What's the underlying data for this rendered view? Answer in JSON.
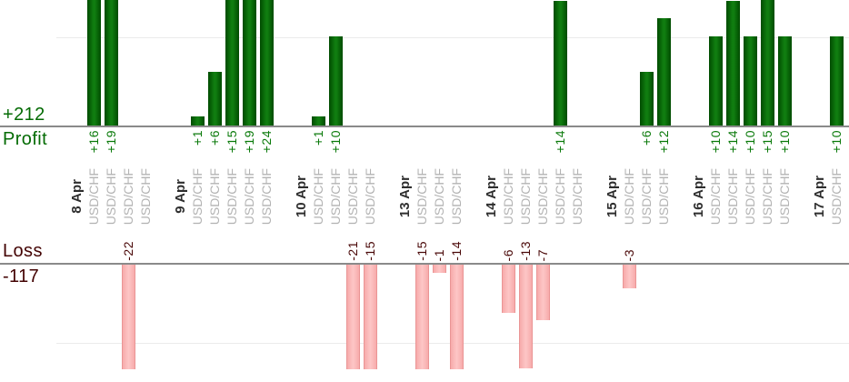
{
  "summary": {
    "profit_total": "+212",
    "profit_label": "Profit",
    "loss_label": "Loss",
    "loss_total": "-117"
  },
  "colors": {
    "profit_bar_edge": "#004b00",
    "profit_bar_center": "#107d10",
    "profit_text": "#0a7a0a",
    "profit_summary_text": "#046b04",
    "loss_bar_fill": "#fdc6c6",
    "loss_bar_edge": "#ea9595",
    "loss_text": "#4a0808",
    "loss_summary_text": "#430303",
    "date_text": "#2e2e2e",
    "instrument_text": "#b3b3b3",
    "axis_line": "#8a8a8a",
    "gridline": "#ebebeb"
  },
  "chart_data": {
    "type": "bar",
    "title": "",
    "xlabel": "",
    "ylabel": "",
    "legend": [
      "Profit",
      "Loss"
    ],
    "gridlines_at_values": [
      10,
      -10
    ],
    "profit_total": 212,
    "loss_total": -117,
    "groups": [
      {
        "date": "8 Apr",
        "trades": [
          {
            "instrument": "USD/CHF",
            "value": 16,
            "label": "+16"
          },
          {
            "instrument": "USD/CHF",
            "value": 19,
            "label": "+19"
          },
          {
            "instrument": "USD/CHF",
            "value": -22,
            "label": "-22"
          },
          {
            "instrument": "USD/CHF",
            "value": 0,
            "label": ""
          }
        ]
      },
      {
        "date": "9 Apr",
        "trades": [
          {
            "instrument": "USD/CHF",
            "value": 1,
            "label": "+1"
          },
          {
            "instrument": "USD/CHF",
            "value": 6,
            "label": "+6"
          },
          {
            "instrument": "USD/CHF",
            "value": 15,
            "label": "+15"
          },
          {
            "instrument": "USD/CHF",
            "value": 19,
            "label": "+19"
          },
          {
            "instrument": "USD/CHF",
            "value": 24,
            "label": "+24"
          }
        ]
      },
      {
        "date": "10 Apr",
        "trades": [
          {
            "instrument": "USD/CHF",
            "value": 1,
            "label": "+1"
          },
          {
            "instrument": "USD/CHF",
            "value": 10,
            "label": "+10"
          },
          {
            "instrument": "USD/CHF",
            "value": -21,
            "label": "-21"
          },
          {
            "instrument": "USD/CHF",
            "value": -15,
            "label": "-15"
          }
        ]
      },
      {
        "date": "13 Apr",
        "trades": [
          {
            "instrument": "USD/CHF",
            "value": -15,
            "label": "-15"
          },
          {
            "instrument": "USD/CHF",
            "value": -1,
            "label": "-1"
          },
          {
            "instrument": "USD/CHF",
            "value": -14,
            "label": "-14"
          }
        ]
      },
      {
        "date": "14 Apr",
        "trades": [
          {
            "instrument": "USD/CHF",
            "value": -6,
            "label": "-6"
          },
          {
            "instrument": "USD/CHF",
            "value": -13,
            "label": "-13"
          },
          {
            "instrument": "USD/CHF",
            "value": -7,
            "label": "-7"
          },
          {
            "instrument": "USD/CHF",
            "value": 14,
            "label": "+14"
          },
          {
            "instrument": "USD/CHF",
            "value": 0,
            "label": ""
          }
        ]
      },
      {
        "date": "15 Apr",
        "trades": [
          {
            "instrument": "USD/CHF",
            "value": -3,
            "label": "-3"
          },
          {
            "instrument": "USD/CHF",
            "value": 6,
            "label": "+6"
          },
          {
            "instrument": "USD/CHF",
            "value": 12,
            "label": "+12"
          }
        ]
      },
      {
        "date": "16 Apr",
        "trades": [
          {
            "instrument": "USD/CHF",
            "value": 10,
            "label": "+10"
          },
          {
            "instrument": "USD/CHF",
            "value": 14,
            "label": "+14"
          },
          {
            "instrument": "USD/CHF",
            "value": 10,
            "label": "+10"
          },
          {
            "instrument": "USD/CHF",
            "value": 15,
            "label": "+15"
          },
          {
            "instrument": "USD/CHF",
            "value": 10,
            "label": "+10"
          }
        ]
      },
      {
        "date": "17 Apr",
        "trades": [
          {
            "instrument": "USD/CHF",
            "value": 10,
            "label": "+10"
          }
        ]
      }
    ]
  }
}
